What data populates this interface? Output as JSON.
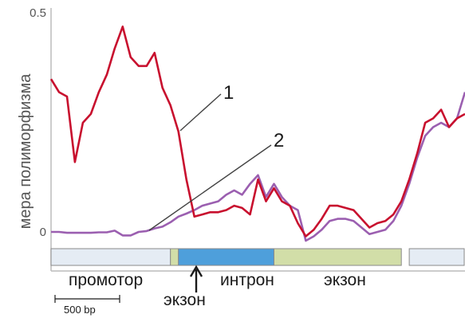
{
  "chart_data": {
    "type": "line",
    "ylabel": "мера полиморфизма",
    "yticks": [
      "0.5",
      "0"
    ],
    "ylim": [
      -0.08,
      0.5
    ],
    "xlim": [
      0,
      52
    ],
    "grid": false,
    "series": [
      {
        "name": "1",
        "color": "#c8102e",
        "x": [
          0,
          1,
          2,
          3,
          4,
          5,
          6,
          7,
          8,
          9,
          10,
          11,
          12,
          13,
          14,
          15,
          16,
          17,
          18,
          19,
          20,
          21,
          22,
          23,
          24,
          25,
          26,
          27,
          28,
          29,
          30,
          31,
          32,
          33,
          34,
          35,
          36,
          37,
          38,
          39,
          40,
          41,
          42,
          43,
          44,
          45,
          46,
          47,
          48,
          49,
          50,
          51,
          52
        ],
        "y": [
          0.35,
          0.32,
          0.31,
          0.16,
          0.25,
          0.27,
          0.32,
          0.36,
          0.42,
          0.47,
          0.4,
          0.38,
          0.38,
          0.41,
          0.33,
          0.29,
          0.23,
          0.12,
          0.035,
          0.04,
          0.045,
          0.045,
          0.05,
          0.06,
          0.055,
          0.04,
          0.12,
          0.07,
          0.1,
          0.07,
          0.06,
          0.02,
          -0.01,
          0.005,
          0.03,
          0.06,
          0.06,
          0.055,
          0.05,
          0.03,
          0.01,
          0.02,
          0.025,
          0.04,
          0.07,
          0.12,
          0.18,
          0.25,
          0.26,
          0.28,
          0.24,
          0.26,
          0.27
        ]
      },
      {
        "name": "2",
        "color": "#9b5fb0",
        "x": [
          0,
          1,
          2,
          3,
          4,
          5,
          6,
          7,
          8,
          9,
          10,
          11,
          12,
          13,
          14,
          15,
          16,
          17,
          18,
          19,
          20,
          21,
          22,
          23,
          24,
          25,
          26,
          27,
          28,
          29,
          30,
          31,
          32,
          33,
          34,
          35,
          36,
          37,
          38,
          39,
          40,
          41,
          42,
          43,
          44,
          45,
          46,
          47,
          48,
          49,
          50,
          51,
          52
        ],
        "y": [
          0,
          0,
          -0.002,
          -0.002,
          -0.002,
          -0.002,
          -0.001,
          -0.001,
          0.003,
          -0.008,
          -0.008,
          0,
          0.002,
          0.008,
          0.012,
          0.022,
          0.035,
          0.042,
          0.05,
          0.06,
          0.065,
          0.07,
          0.085,
          0.095,
          0.085,
          0.11,
          0.13,
          0.08,
          0.11,
          0.08,
          0.06,
          0.05,
          -0.02,
          -0.01,
          0.005,
          0.025,
          0.03,
          0.03,
          0.025,
          0.01,
          -0.005,
          0,
          0.005,
          0.025,
          0.06,
          0.11,
          0.17,
          0.22,
          0.24,
          0.25,
          0.24,
          0.26,
          0.32
        ]
      }
    ],
    "gene_segments": [
      {
        "label": "промотор",
        "color": "#e5ecf4",
        "x0": 0,
        "x1": 15
      },
      {
        "label": "экзон",
        "color": "#d2dea8",
        "x0": 15,
        "x1": 16
      },
      {
        "label": "интрон",
        "color": "#4e9fdb",
        "x0": 16,
        "x1": 28
      },
      {
        "label": "экзон",
        "color": "#d2dea8",
        "x0": 28,
        "x1": 44
      },
      {
        "label": "",
        "color": "#e5ecf4",
        "x0": 45,
        "x1": 52
      }
    ],
    "scale_bar": "500 bp"
  }
}
